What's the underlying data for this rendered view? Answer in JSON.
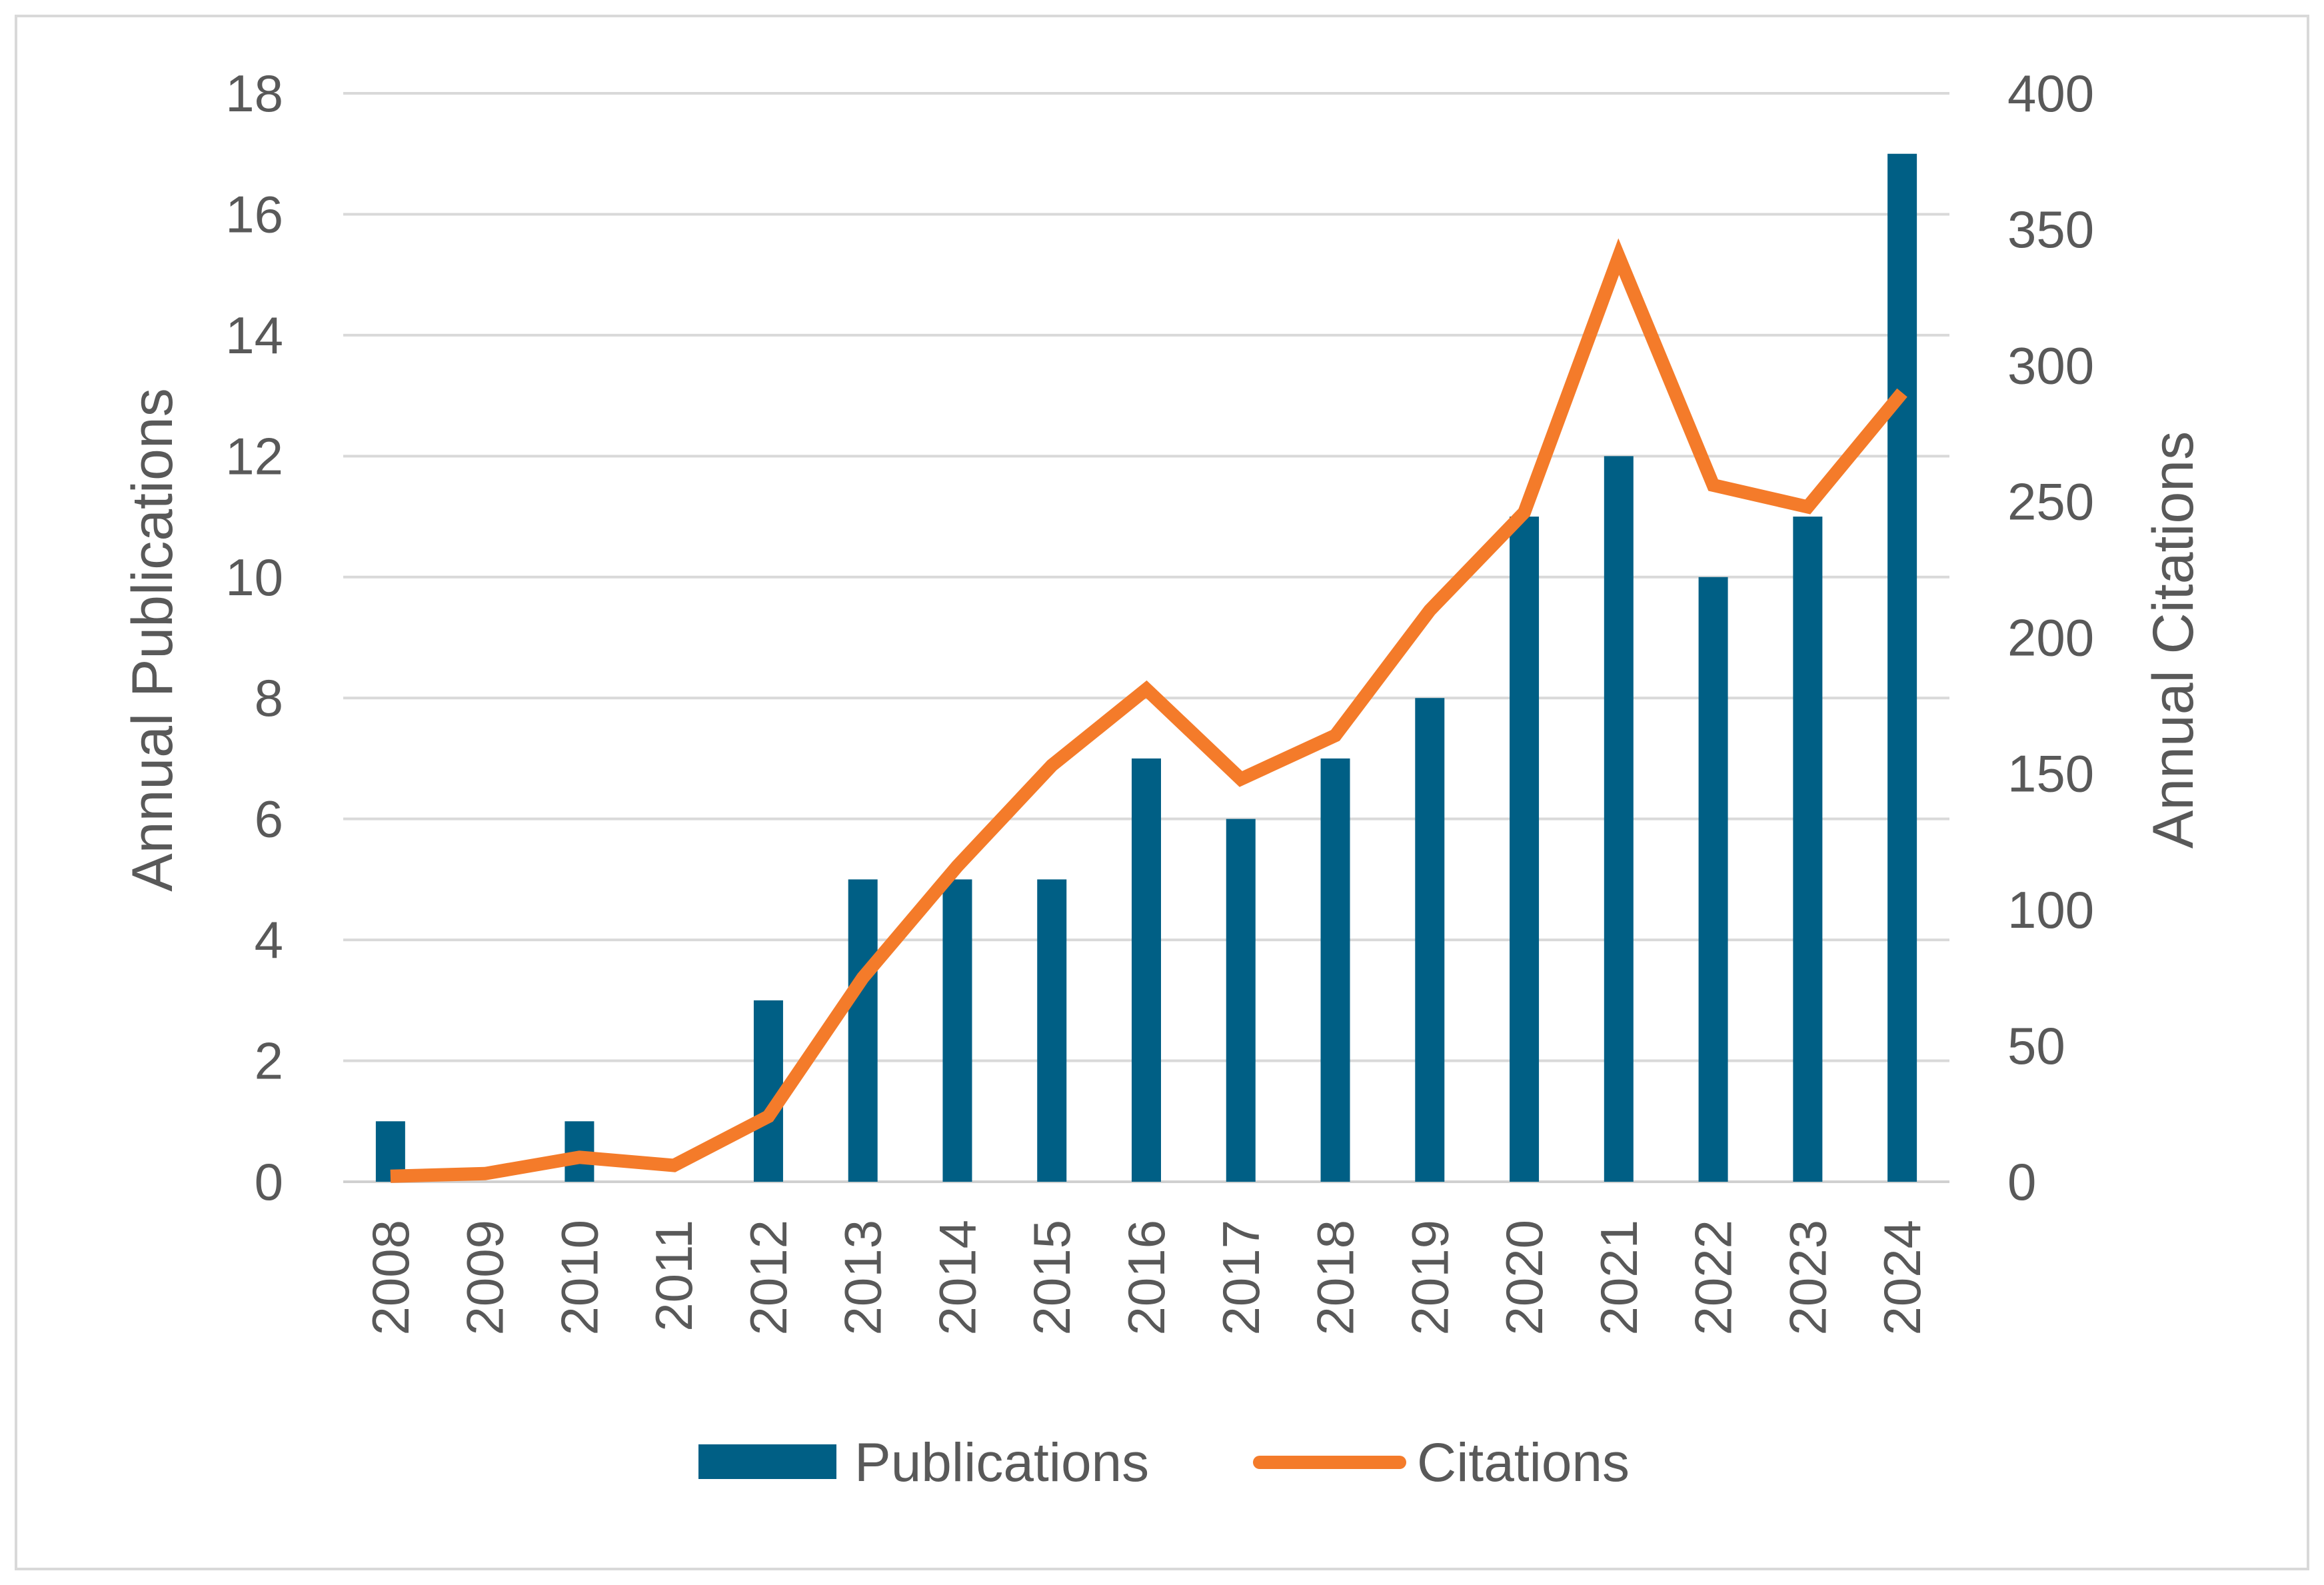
{
  "chart_data": {
    "type": "bar+line",
    "categories": [
      "2008",
      "2009",
      "2010",
      "2011",
      "2012",
      "2013",
      "2014",
      "2015",
      "2016",
      "2017",
      "2018",
      "2019",
      "2020",
      "2021",
      "2022",
      "2023",
      "2024"
    ],
    "series": [
      {
        "name": "Publications",
        "type": "bar",
        "axis": "left",
        "color": "#005F85",
        "values": [
          1,
          0,
          1,
          0,
          3,
          5,
          5,
          5,
          7,
          6,
          7,
          8,
          11,
          12,
          10,
          11,
          17
        ]
      },
      {
        "name": "Citations",
        "type": "line",
        "axis": "right",
        "color": "#F47B2A",
        "values": [
          2,
          3,
          9,
          6,
          24,
          75,
          116,
          153,
          181,
          148,
          164,
          210,
          246,
          340,
          256,
          248,
          290
        ]
      }
    ],
    "ylabel_left": "Annual Publications",
    "ylabel_right": "Annual Citations",
    "ylim_left": [
      0,
      18
    ],
    "ylim_right": [
      0,
      400
    ],
    "yticks_left": [
      "0",
      "2",
      "4",
      "6",
      "8",
      "10",
      "12",
      "14",
      "16",
      "18"
    ],
    "yticks_right": [
      "0",
      "50",
      "100",
      "150",
      "200",
      "250",
      "300",
      "350",
      "400"
    ],
    "grid": true,
    "legend": "bottom-center",
    "title": ""
  }
}
